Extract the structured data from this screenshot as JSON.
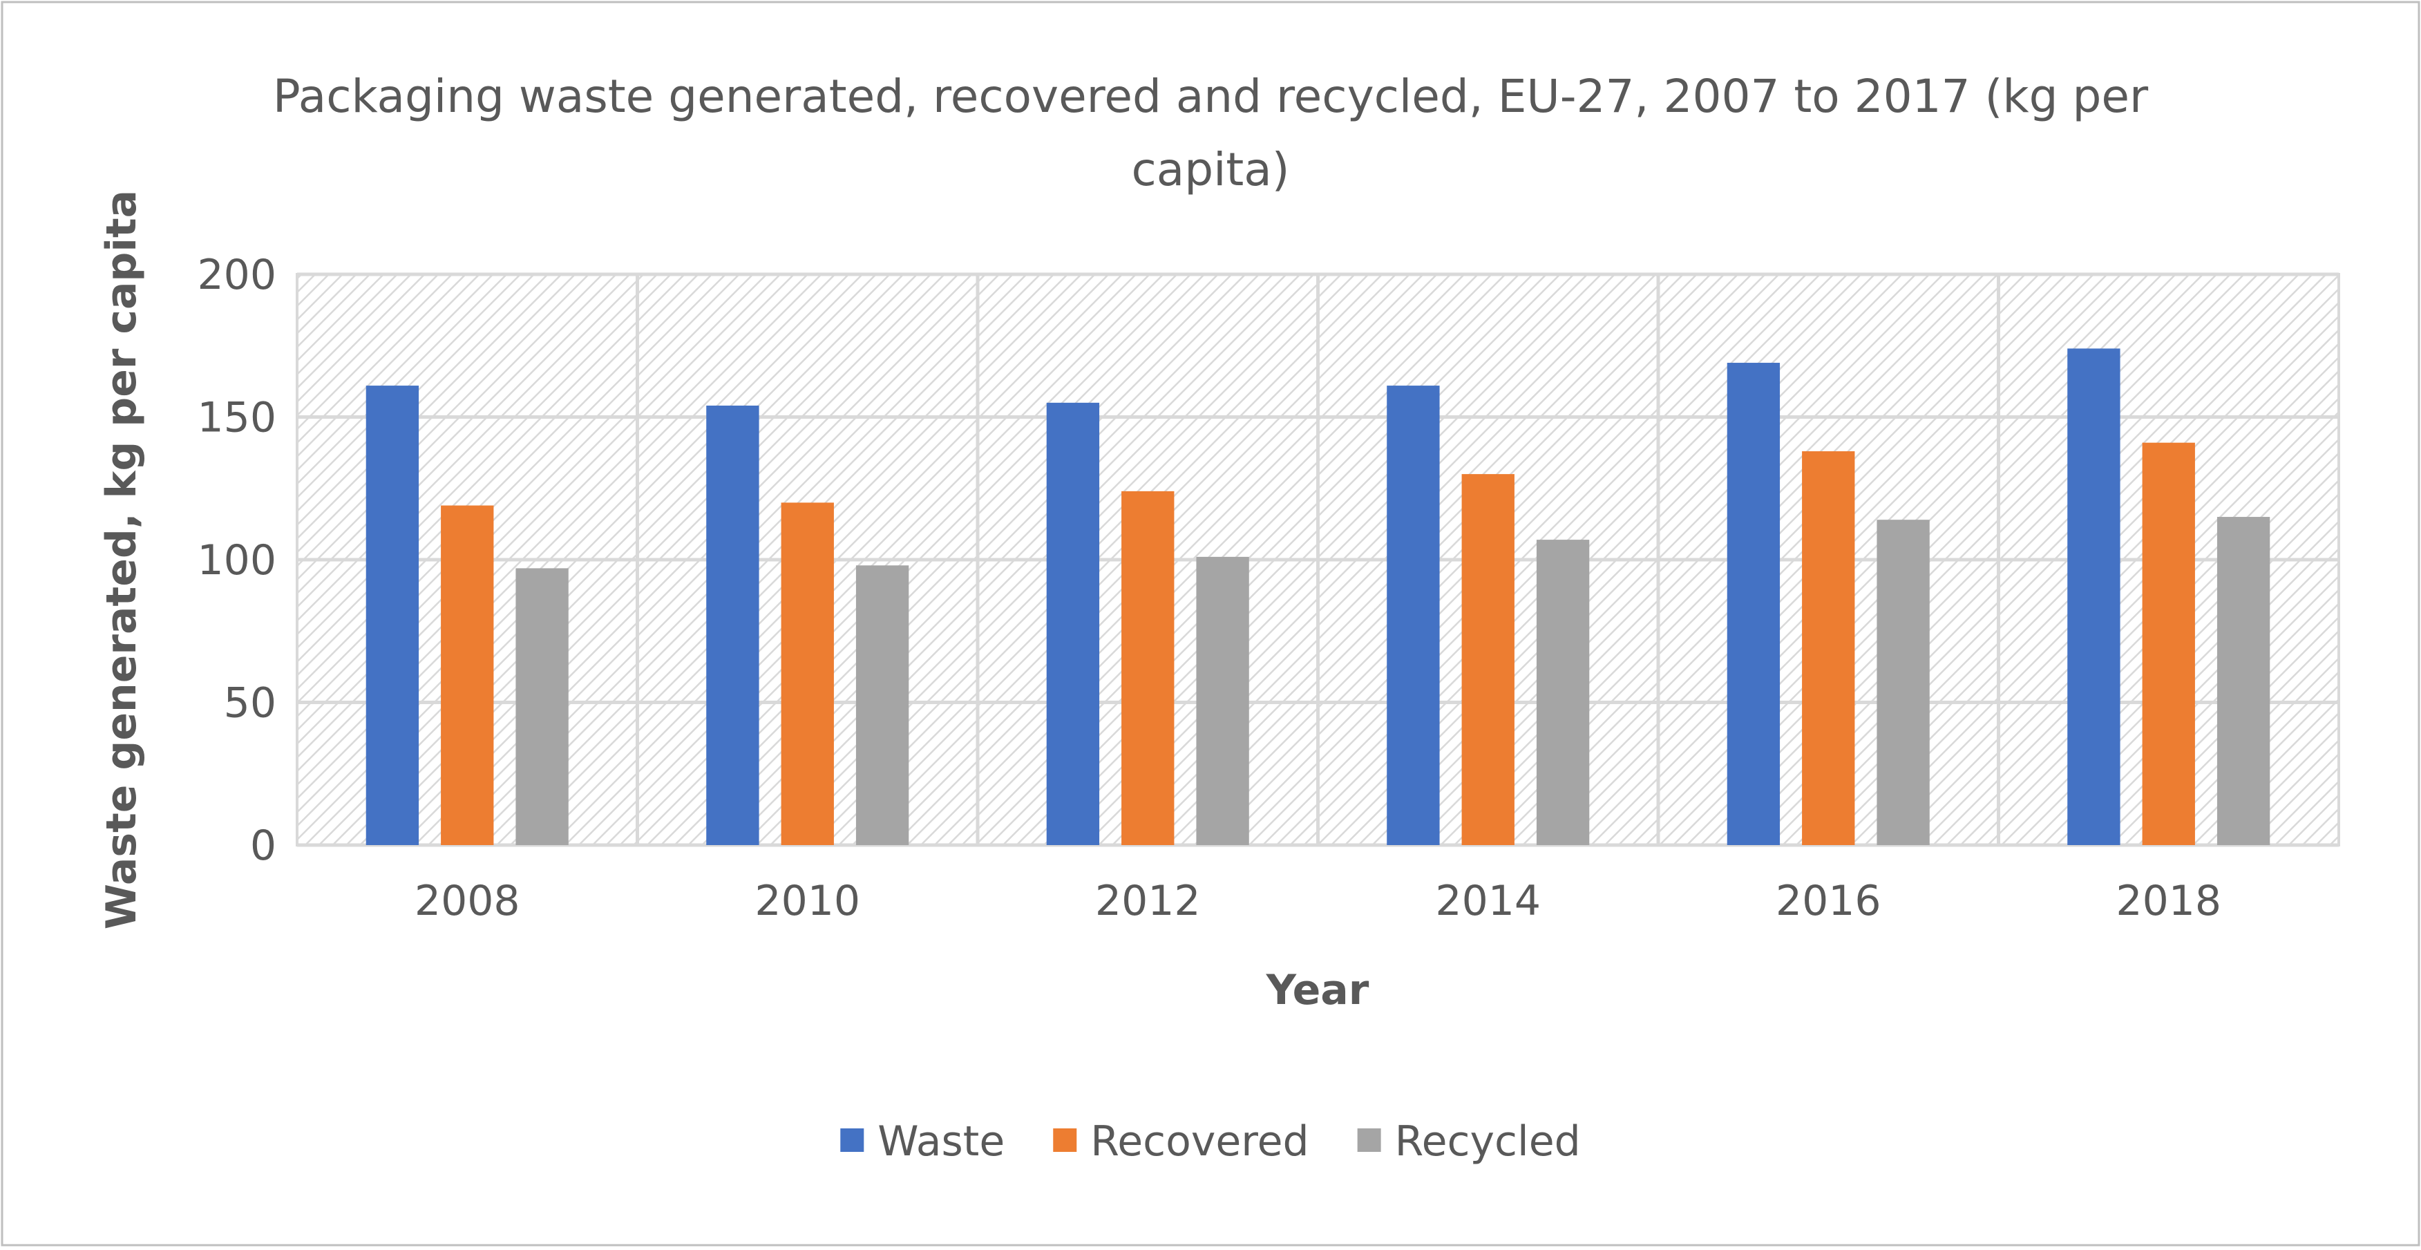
{
  "chart_data": {
    "type": "bar",
    "title": "Packaging  waste generated, recovered and recycled, EU-27, 2007 to 2017 (kg per capita)",
    "title_lines": [
      "Packaging  waste generated, recovered and recycled, EU-27, 2007 to 2017 (kg per",
      "capita)"
    ],
    "xlabel": "Year",
    "ylabel": "Waste generated, kg per capita",
    "categories": [
      "2008",
      "2010",
      "2012",
      "2014",
      "2016",
      "2018"
    ],
    "ylim": [
      0,
      200
    ],
    "yticks": [
      0,
      50,
      100,
      150,
      200
    ],
    "grid": true,
    "legend_position": "bottom",
    "series": [
      {
        "name": "Waste",
        "color": "#4472C4",
        "values": [
          161,
          154,
          155,
          161,
          169,
          174
        ]
      },
      {
        "name": "Recovered",
        "color": "#ED7D31",
        "values": [
          119,
          120,
          124,
          130,
          138,
          141
        ]
      },
      {
        "name": "Recycled",
        "color": "#A5A5A5",
        "values": [
          97,
          98,
          101,
          107,
          114,
          115
        ]
      }
    ]
  }
}
